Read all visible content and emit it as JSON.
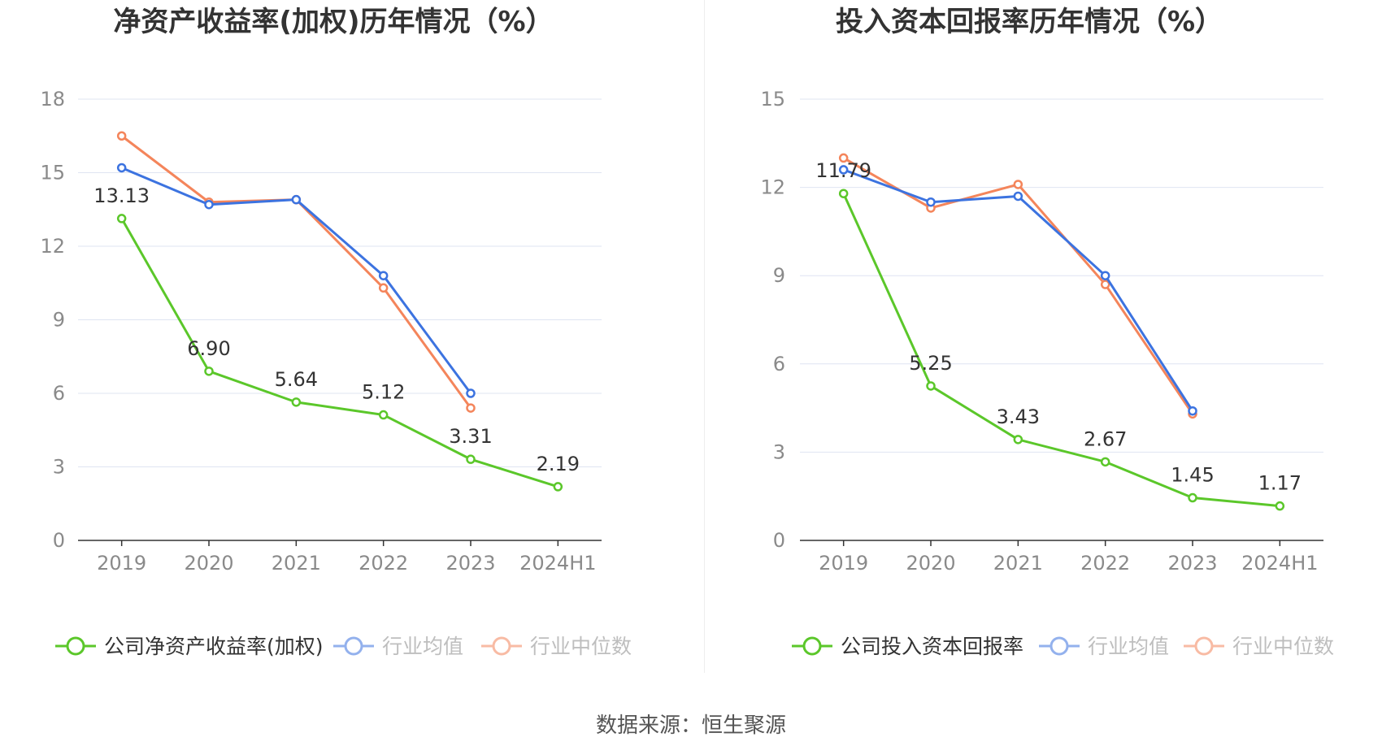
{
  "source_text": "数据来源：恒生聚源",
  "colors": {
    "company": "#5bc72a",
    "average": "#3c73e0",
    "median": "#f4855b",
    "grid": "#dfe4f2",
    "axis": "#333333",
    "tick_text": "#8a8a8a"
  },
  "chart_data": [
    {
      "type": "line",
      "title": "净资产收益率(加权)历年情况（%）",
      "categories": [
        "2019",
        "2020",
        "2021",
        "2022",
        "2023",
        "2024H1"
      ],
      "ylim": [
        0,
        18
      ],
      "yticks": [
        "0",
        "3",
        "6",
        "9",
        "12",
        "15",
        "18"
      ],
      "grid": true,
      "legend_position": "bottom",
      "series": [
        {
          "name": "公司净资产收益率(加权)",
          "values": [
            13.13,
            6.9,
            5.64,
            5.12,
            3.31,
            2.19
          ],
          "labels": [
            "13.13",
            "6.90",
            "5.64",
            "5.12",
            "3.31",
            "2.19"
          ]
        },
        {
          "name": "行业均值",
          "values": [
            15.2,
            13.7,
            13.9,
            10.8,
            6.0,
            null
          ]
        },
        {
          "name": "行业中位数",
          "values": [
            16.5,
            13.8,
            13.9,
            10.3,
            5.4,
            null
          ]
        }
      ]
    },
    {
      "type": "line",
      "title": "投入资本回报率历年情况（%）",
      "categories": [
        "2019",
        "2020",
        "2021",
        "2022",
        "2023",
        "2024H1"
      ],
      "ylim": [
        0,
        15
      ],
      "yticks": [
        "0",
        "3",
        "6",
        "9",
        "12",
        "15"
      ],
      "grid": true,
      "legend_position": "bottom",
      "series": [
        {
          "name": "公司投入资本回报率",
          "values": [
            11.79,
            5.25,
            3.43,
            2.67,
            1.45,
            1.17
          ],
          "labels": [
            "11.79",
            "5.25",
            "3.43",
            "2.67",
            "1.45",
            "1.17"
          ]
        },
        {
          "name": "行业均值",
          "values": [
            12.6,
            11.5,
            11.7,
            9.0,
            4.4,
            null
          ]
        },
        {
          "name": "行业中位数",
          "values": [
            13.0,
            11.3,
            12.1,
            8.7,
            4.3,
            null
          ]
        }
      ]
    }
  ]
}
